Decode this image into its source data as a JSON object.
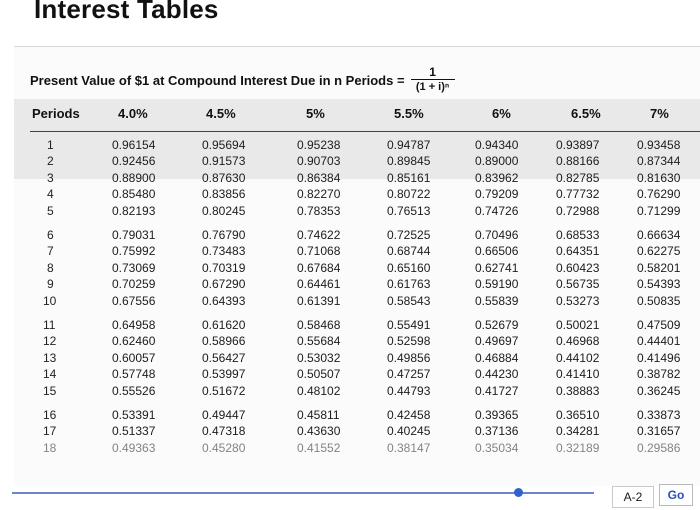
{
  "page": {
    "title": "Interest Tables"
  },
  "table": {
    "title": "Present Value of $1 at Compound Interest Due in n Periods =",
    "formula_numerator": "1",
    "formula_denominator": "(1 + i)ⁿ",
    "columns": [
      "Periods",
      "4.0%",
      "4.5%",
      "5%",
      "5.5%",
      "6%",
      "6.5%",
      "7%"
    ],
    "groups": [
      {
        "rows": [
          [
            "1",
            "0.96154",
            "0.95694",
            "0.95238",
            "0.94787",
            "0.94340",
            "0.93897",
            "0.93458"
          ],
          [
            "2",
            "0.92456",
            "0.91573",
            "0.90703",
            "0.89845",
            "0.89000",
            "0.88166",
            "0.87344"
          ],
          [
            "3",
            "0.88900",
            "0.87630",
            "0.86384",
            "0.85161",
            "0.83962",
            "0.82785",
            "0.81630"
          ],
          [
            "4",
            "0.85480",
            "0.83856",
            "0.82270",
            "0.80722",
            "0.79209",
            "0.77732",
            "0.76290"
          ],
          [
            "5",
            "0.82193",
            "0.80245",
            "0.78353",
            "0.76513",
            "0.74726",
            "0.72988",
            "0.71299"
          ]
        ]
      },
      {
        "rows": [
          [
            "6",
            "0.79031",
            "0.76790",
            "0.74622",
            "0.72525",
            "0.70496",
            "0.68533",
            "0.66634"
          ],
          [
            "7",
            "0.75992",
            "0.73483",
            "0.71068",
            "0.68744",
            "0.66506",
            "0.64351",
            "0.62275"
          ],
          [
            "8",
            "0.73069",
            "0.70319",
            "0.67684",
            "0.65160",
            "0.62741",
            "0.60423",
            "0.58201"
          ],
          [
            "9",
            "0.70259",
            "0.67290",
            "0.64461",
            "0.61763",
            "0.59190",
            "0.56735",
            "0.54393"
          ],
          [
            "10",
            "0.67556",
            "0.64393",
            "0.61391",
            "0.58543",
            "0.55839",
            "0.53273",
            "0.50835"
          ]
        ]
      },
      {
        "rows": [
          [
            "11",
            "0.64958",
            "0.61620",
            "0.58468",
            "0.55491",
            "0.52679",
            "0.50021",
            "0.47509"
          ],
          [
            "12",
            "0.62460",
            "0.58966",
            "0.55684",
            "0.52598",
            "0.49697",
            "0.46968",
            "0.44401"
          ],
          [
            "13",
            "0.60057",
            "0.56427",
            "0.53032",
            "0.49856",
            "0.46884",
            "0.44102",
            "0.41496"
          ],
          [
            "14",
            "0.57748",
            "0.53997",
            "0.50507",
            "0.47257",
            "0.44230",
            "0.41410",
            "0.38782"
          ],
          [
            "15",
            "0.55526",
            "0.51672",
            "0.48102",
            "0.44793",
            "0.41727",
            "0.38883",
            "0.36245"
          ]
        ]
      },
      {
        "rows": [
          [
            "16",
            "0.53391",
            "0.49447",
            "0.45811",
            "0.42458",
            "0.39365",
            "0.36510",
            "0.33873"
          ],
          [
            "17",
            "0.51337",
            "0.47318",
            "0.43630",
            "0.40245",
            "0.37136",
            "0.34281",
            "0.31657"
          ],
          [
            "18",
            "0.49363",
            "0.45280",
            "0.41552",
            "0.38147",
            "0.35034",
            "0.32189",
            "0.29586"
          ]
        ]
      }
    ]
  },
  "nav": {
    "page_label": "A-2",
    "go_label": "Go",
    "progress": 0.87
  }
}
